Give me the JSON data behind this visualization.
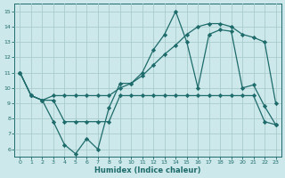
{
  "xlabel": "Humidex (Indice chaleur)",
  "background_color": "#cce8ea",
  "grid_color": "#aacccc",
  "line_color": "#1e6b6b",
  "xlim": [
    -0.5,
    23.5
  ],
  "ylim": [
    5.5,
    15.5
  ],
  "xticks": [
    0,
    1,
    2,
    3,
    4,
    5,
    6,
    7,
    8,
    9,
    10,
    11,
    12,
    13,
    14,
    15,
    16,
    17,
    18,
    19,
    20,
    21,
    22,
    23
  ],
  "yticks": [
    6,
    7,
    8,
    9,
    10,
    11,
    12,
    13,
    14,
    15
  ],
  "line1_x": [
    0,
    1,
    2,
    3,
    4,
    5,
    6,
    7,
    8,
    9,
    10,
    11,
    12,
    13,
    14,
    15,
    16,
    17,
    18,
    19,
    20,
    21,
    22,
    23
  ],
  "line1_y": [
    11.0,
    9.5,
    9.2,
    7.8,
    6.3,
    5.7,
    6.7,
    6.0,
    8.7,
    10.3,
    10.3,
    11.0,
    12.5,
    13.5,
    15.0,
    13.0,
    10.0,
    13.5,
    13.8,
    13.7,
    10.0,
    10.2,
    8.8,
    7.6
  ],
  "line2_x": [
    0,
    1,
    2,
    3,
    4,
    5,
    6,
    7,
    8,
    9,
    10,
    11,
    12,
    13,
    14,
    15,
    16,
    17,
    18,
    19,
    20,
    21,
    22,
    23
  ],
  "line2_y": [
    11.0,
    9.5,
    9.2,
    9.2,
    7.8,
    7.8,
    7.8,
    7.8,
    7.8,
    9.5,
    9.5,
    9.5,
    9.5,
    9.5,
    9.5,
    9.5,
    9.5,
    9.5,
    9.5,
    9.5,
    9.5,
    9.5,
    7.8,
    7.6
  ],
  "line3_x": [
    0,
    1,
    2,
    3,
    4,
    5,
    6,
    7,
    8,
    9,
    10,
    11,
    12,
    13,
    14,
    15,
    16,
    17,
    18,
    19,
    20,
    21,
    22,
    23
  ],
  "line3_y": [
    11.0,
    9.5,
    9.2,
    9.5,
    9.5,
    9.5,
    9.5,
    9.5,
    9.5,
    10.0,
    10.3,
    10.8,
    11.5,
    12.2,
    12.8,
    13.5,
    14.0,
    14.2,
    14.2,
    14.0,
    13.5,
    13.3,
    13.0,
    9.0
  ]
}
